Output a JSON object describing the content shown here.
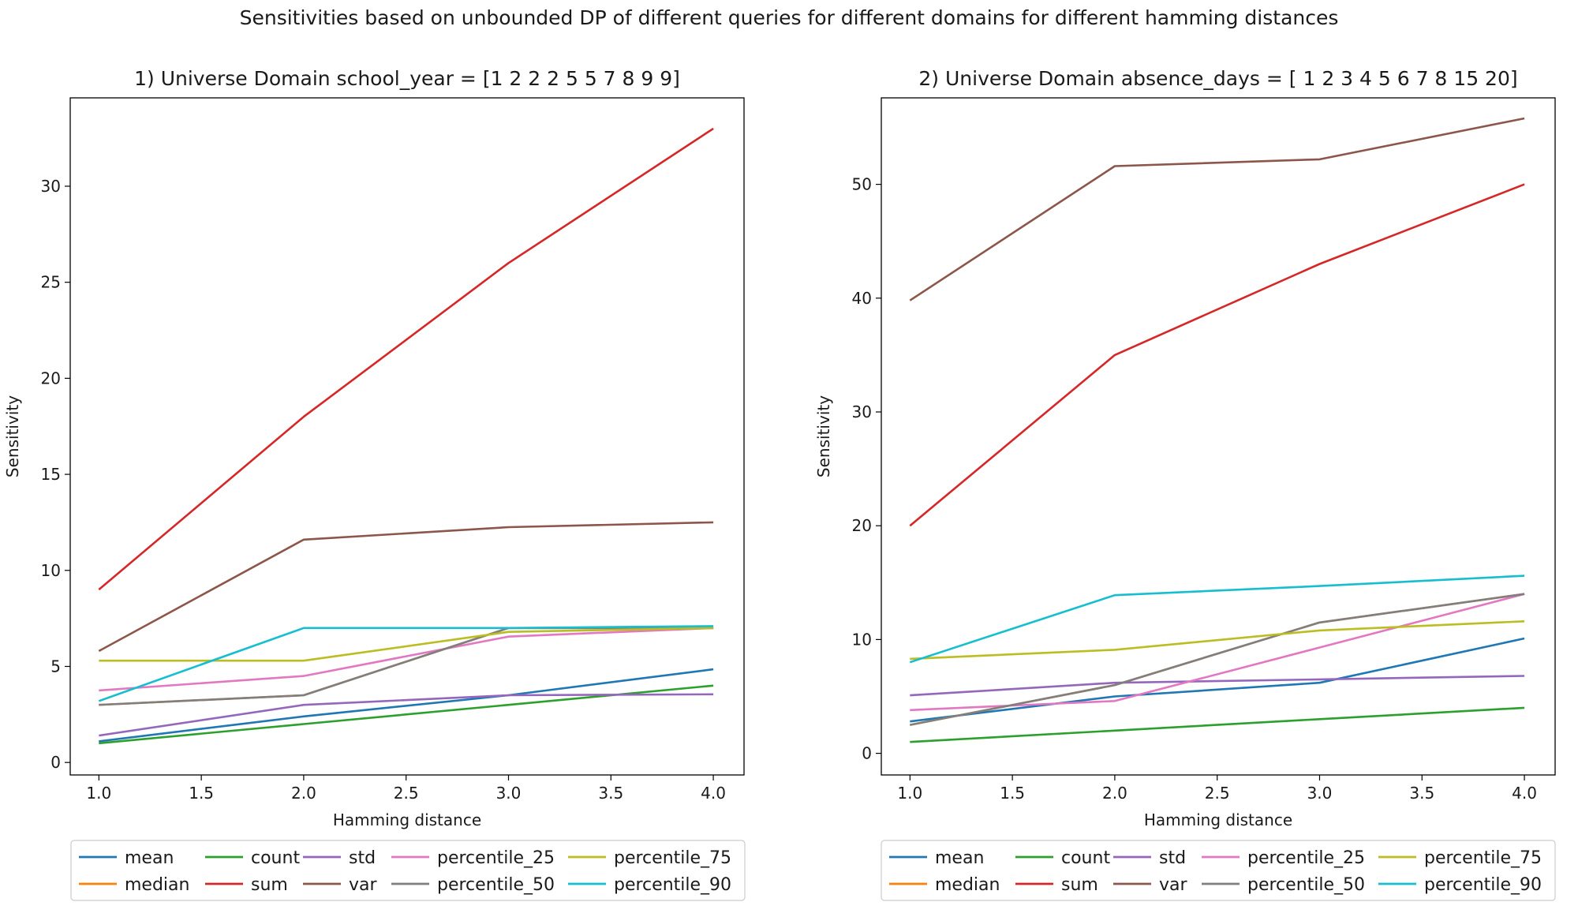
{
  "figure": {
    "suptitle": "Sensitivities based on unbounded DP of different queries for different domains for different hamming distances"
  },
  "colors": {
    "mean": "#1f77b4",
    "median": "#ff7f0e",
    "count": "#2ca02c",
    "sum": "#d62728",
    "std": "#9467bd",
    "var": "#8c564b",
    "percentile_25": "#e377c2",
    "percentile_50": "#7f7f7f",
    "percentile_75": "#bcbd22",
    "percentile_90": "#17becf"
  },
  "chart_data": [
    {
      "type": "line",
      "title": "1) Universe Domain school_year = [1 2 2 2 5 5 7 8 9 9]",
      "xlabel": "Hamming distance",
      "ylabel": "Sensitivity",
      "xlim": [
        0.86,
        4.15
      ],
      "ylim": [
        -0.65,
        34.6
      ],
      "xticks": [
        "1.0",
        "1.5",
        "2.0",
        "2.5",
        "3.0",
        "3.5",
        "4.0"
      ],
      "yticks": [
        "0",
        "5",
        "10",
        "15",
        "20",
        "25",
        "30"
      ],
      "legend_position": "below plot, 5 columns",
      "x": [
        1,
        2,
        3,
        4
      ],
      "series": [
        {
          "name": "mean",
          "values": [
            1.1,
            2.4,
            3.5,
            4.85
          ]
        },
        {
          "name": "median",
          "values": [
            3.0,
            3.5,
            7.0,
            7.0
          ]
        },
        {
          "name": "count",
          "values": [
            1,
            2,
            3,
            4
          ]
        },
        {
          "name": "sum",
          "values": [
            9,
            18,
            26,
            33
          ]
        },
        {
          "name": "std",
          "values": [
            1.4,
            3.0,
            3.5,
            3.55
          ]
        },
        {
          "name": "var",
          "values": [
            5.8,
            11.6,
            12.25,
            12.5
          ]
        },
        {
          "name": "percentile_25",
          "values": [
            3.75,
            4.5,
            6.55,
            7.0
          ]
        },
        {
          "name": "percentile_50",
          "values": [
            3.0,
            3.5,
            7.0,
            7.0
          ]
        },
        {
          "name": "percentile_75",
          "values": [
            5.3,
            5.3,
            6.8,
            7.0
          ]
        },
        {
          "name": "percentile_90",
          "values": [
            3.2,
            7.0,
            7.0,
            7.1
          ]
        }
      ]
    },
    {
      "type": "line",
      "title": "2) Universe Domain absence_days = [ 1  2  3  4  5  6  7  8 15 20]",
      "xlabel": "Hamming distance",
      "ylabel": "Sensitivity",
      "xlim": [
        0.86,
        4.15
      ],
      "ylim": [
        -1.9,
        57.6
      ],
      "xticks": [
        "1.0",
        "1.5",
        "2.0",
        "2.5",
        "3.0",
        "3.5",
        "4.0"
      ],
      "yticks": [
        "0",
        "10",
        "20",
        "30",
        "40",
        "50"
      ],
      "legend_position": "below plot, 5 columns",
      "x": [
        1,
        2,
        3,
        4
      ],
      "series": [
        {
          "name": "mean",
          "values": [
            2.8,
            5.0,
            6.2,
            10.1
          ]
        },
        {
          "name": "median",
          "values": [
            2.5,
            6.0,
            11.5,
            14.0
          ]
        },
        {
          "name": "count",
          "values": [
            1,
            2,
            3,
            4
          ]
        },
        {
          "name": "sum",
          "values": [
            20,
            35,
            43,
            50
          ]
        },
        {
          "name": "std",
          "values": [
            5.1,
            6.2,
            6.5,
            6.8
          ]
        },
        {
          "name": "var",
          "values": [
            39.8,
            51.6,
            52.2,
            55.8
          ]
        },
        {
          "name": "percentile_25",
          "values": [
            3.8,
            4.6,
            9.3,
            14.0
          ]
        },
        {
          "name": "percentile_50",
          "values": [
            2.5,
            6.0,
            11.5,
            14.0
          ]
        },
        {
          "name": "percentile_75",
          "values": [
            8.3,
            9.1,
            10.8,
            11.6
          ]
        },
        {
          "name": "percentile_90",
          "values": [
            8.0,
            13.9,
            14.7,
            15.6
          ]
        }
      ]
    }
  ]
}
